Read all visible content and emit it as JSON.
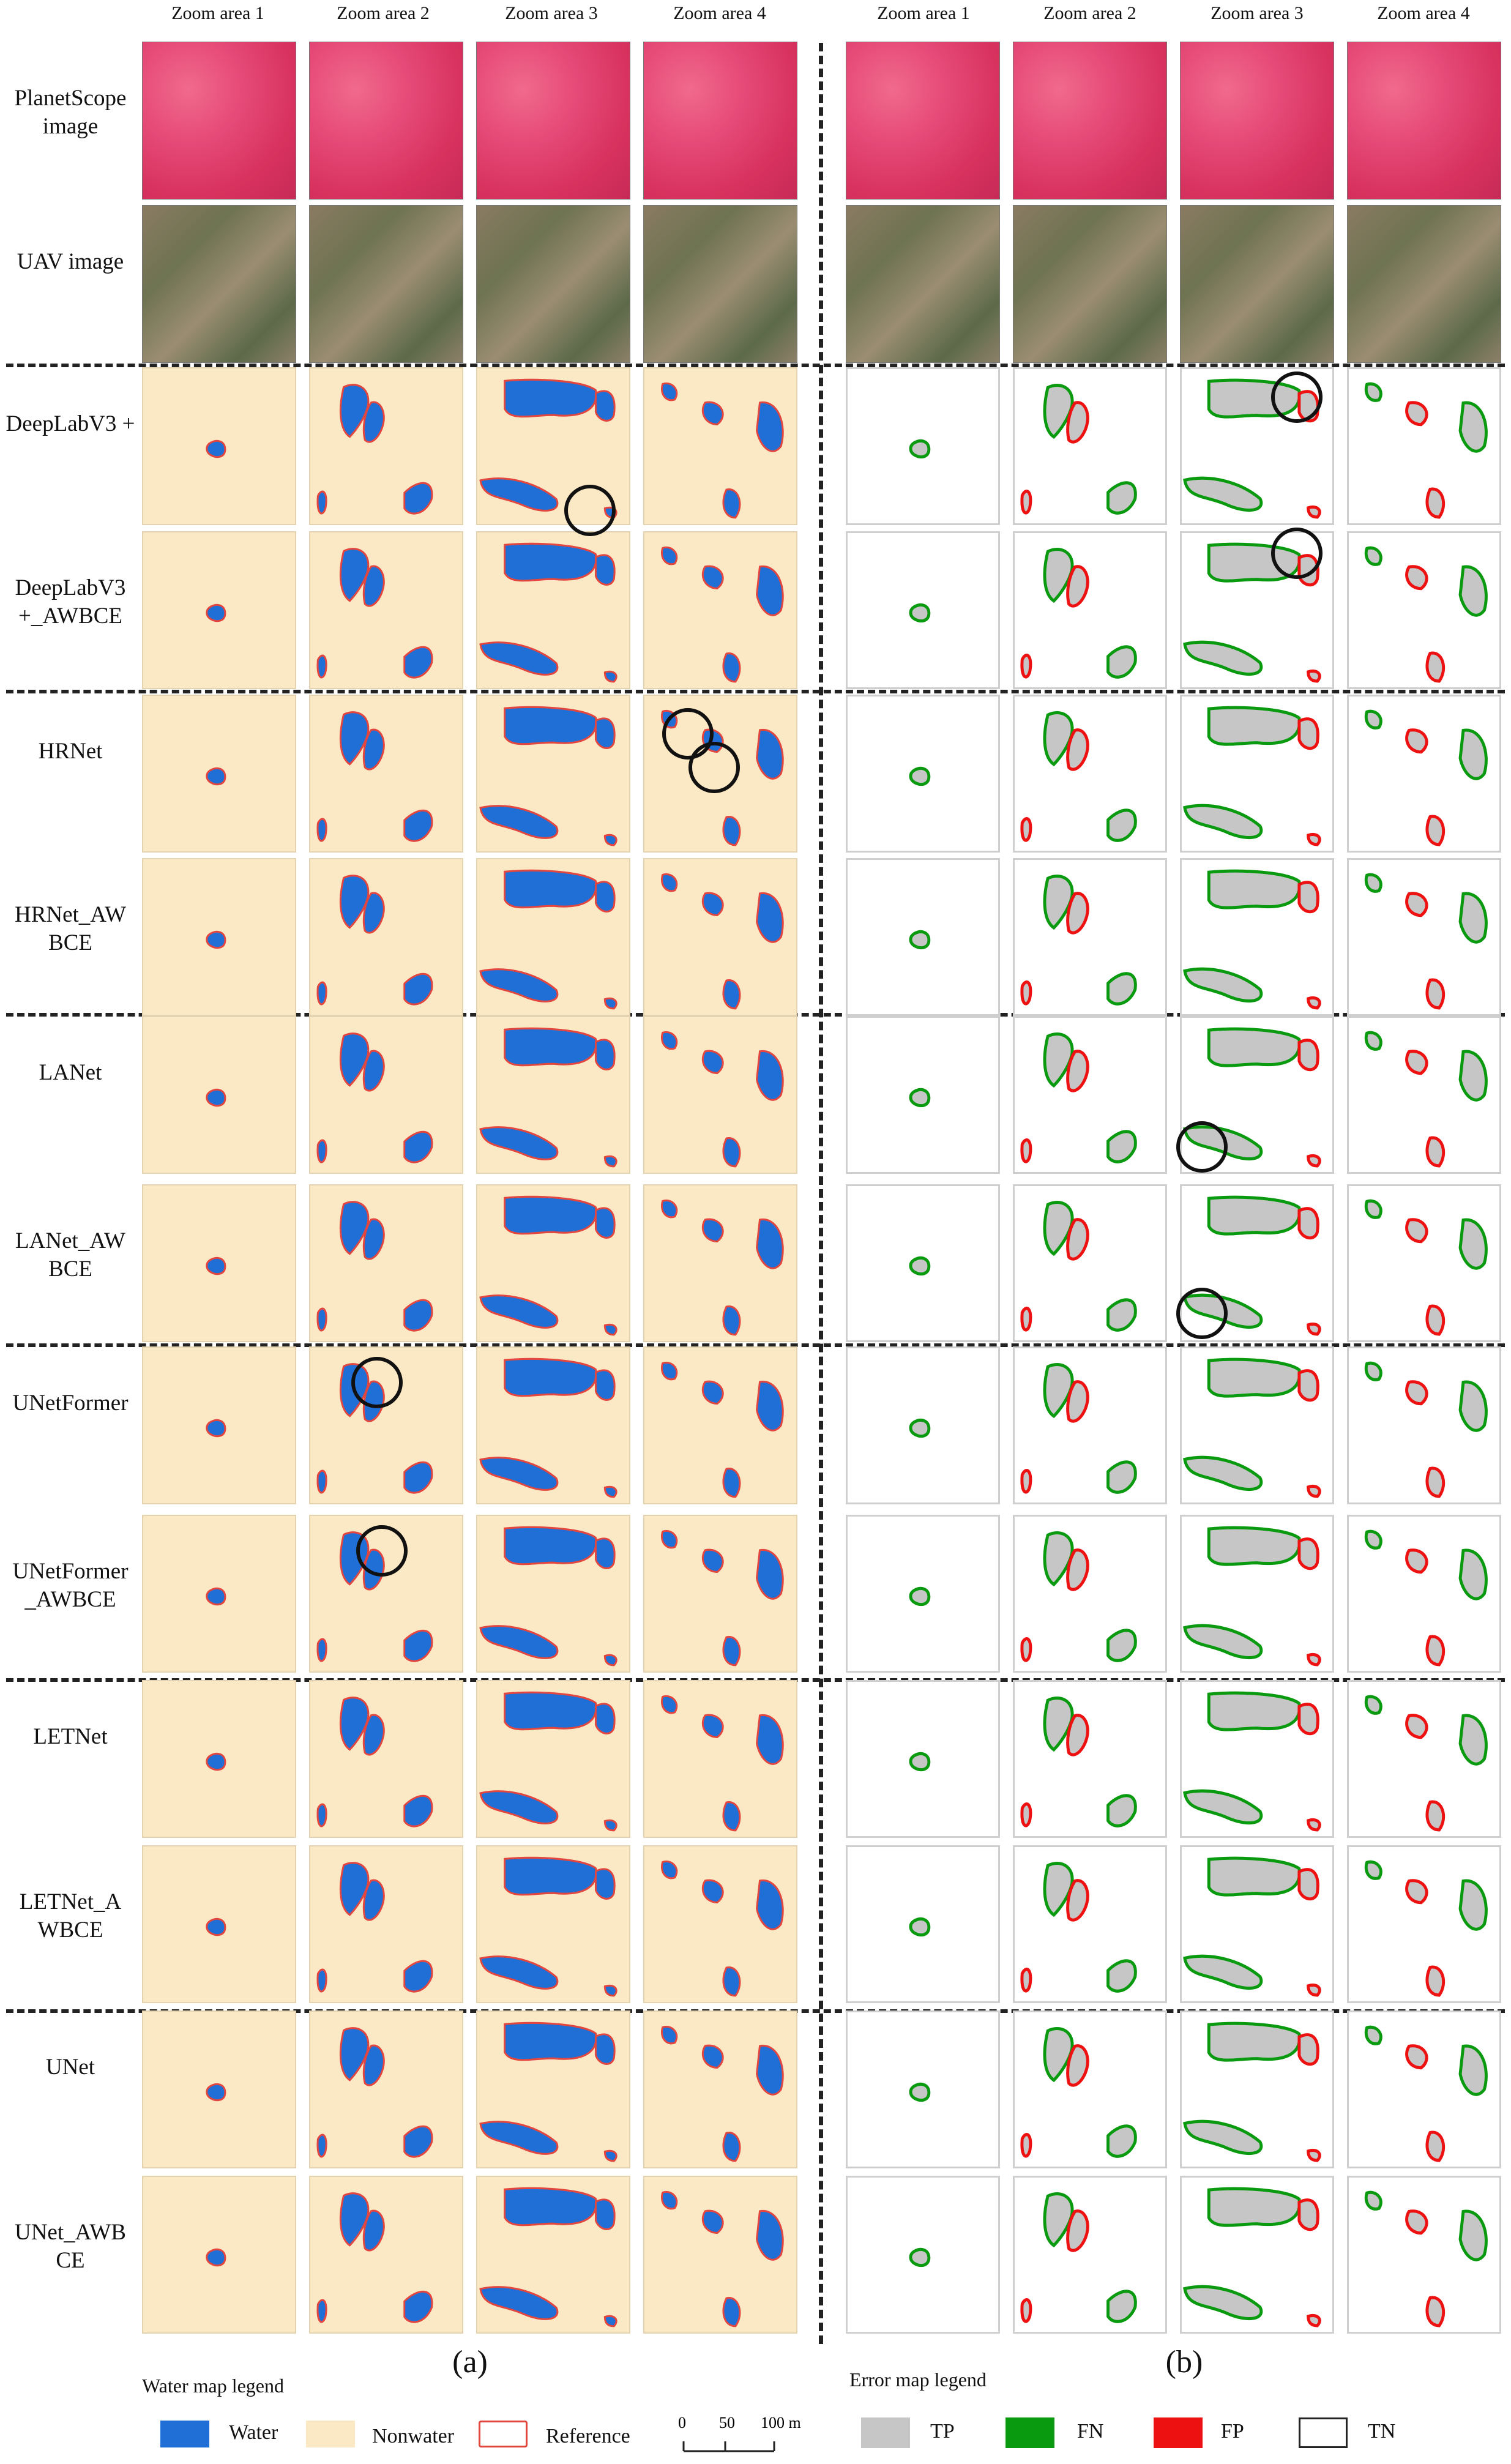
{
  "column_headers": [
    "Zoom area 1",
    "Zoom area 2",
    "Zoom area 3",
    "Zoom area 4"
  ],
  "image_rows": [
    "PlanetScope image",
    "UAV image"
  ],
  "model_rows": [
    "DeepLabV3 +",
    "DeepLabV3 +_AWBCE",
    "HRNet",
    "HRNet_AW BCE",
    "LANet",
    "LANet_AW BCE",
    "UNetFormer",
    "UNetFormer _AWBCE",
    "LETNet",
    "LETNet_A WBCE",
    "UNet",
    "UNet_AWB CE"
  ],
  "panel_labels": {
    "a": "(a)",
    "b": "(b)"
  },
  "water_legend": {
    "title": "Water map legend",
    "water": "Water",
    "nonwater": "Nonwater",
    "reference": "Reference",
    "scale": {
      "t0": "0",
      "t1": "50",
      "t2": "100 m"
    }
  },
  "error_legend": {
    "title": "Error map legend",
    "tp": "TP",
    "fn": "FN",
    "fp": "FP",
    "tn": "TN"
  },
  "colors": {
    "water": "#1f6fd6",
    "nonwater": "#fbe8c4",
    "reference": "#e3463f",
    "tp": "#c6c6c6",
    "fn": "#0a9a10",
    "fp": "#ee1111",
    "tn": "#ffffff"
  }
}
